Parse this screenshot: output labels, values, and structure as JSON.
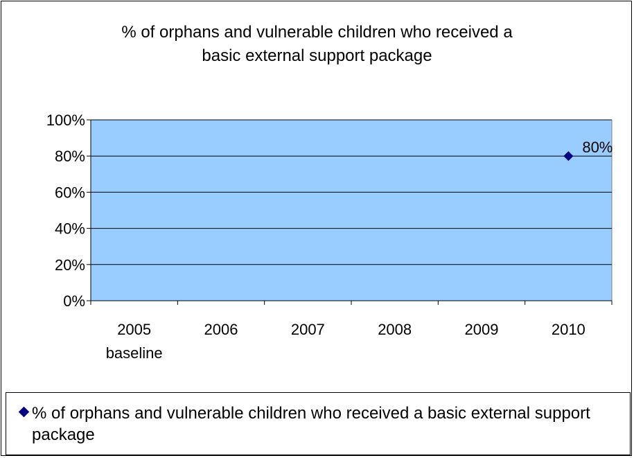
{
  "chart_data": {
    "type": "scatter",
    "title": "% of orphans and vulnerable children who received a\nbasic external support package",
    "categories": [
      "2005\nbaseline",
      "2006",
      "2007",
      "2008",
      "2009",
      "2010"
    ],
    "series": [
      {
        "name": "% of orphans and vulnerable children who received a basic external support package",
        "values": [
          null,
          null,
          null,
          null,
          null,
          80
        ],
        "data_labels": [
          null,
          null,
          null,
          null,
          null,
          "80%"
        ],
        "color": "#000080",
        "marker": "diamond"
      }
    ],
    "yticks": [
      "0%",
      "20%",
      "40%",
      "60%",
      "80%",
      "100%"
    ],
    "ylim": [
      0,
      100
    ],
    "plot_background": "#99CCFF",
    "grid": true,
    "legend_position": "bottom"
  }
}
